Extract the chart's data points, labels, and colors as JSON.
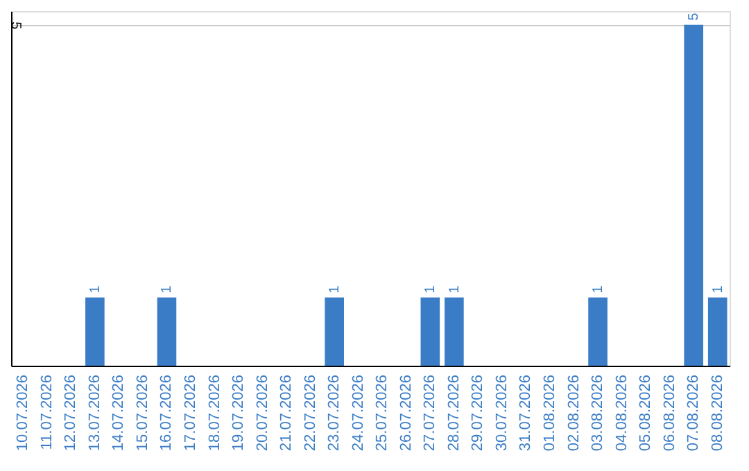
{
  "chart_data": {
    "type": "bar",
    "categories": [
      "10.07.2026",
      "11.07.2026",
      "12.07.2026",
      "13.07.2026",
      "14.07.2026",
      "15.07.2026",
      "16.07.2026",
      "17.07.2026",
      "18.07.2026",
      "19.07.2026",
      "20.07.2026",
      "21.07.2026",
      "22.07.2026",
      "23.07.2026",
      "24.07.2026",
      "25.07.2026",
      "26.07.2026",
      "27.07.2026",
      "28.07.2026",
      "29.07.2026",
      "30.07.2026",
      "31.07.2026",
      "01.08.2026",
      "02.08.2026",
      "03.08.2026",
      "04.08.2026",
      "05.08.2026",
      "06.08.2026",
      "07.08.2026",
      "08.08.2026"
    ],
    "values": [
      null,
      null,
      null,
      1,
      null,
      null,
      1,
      null,
      null,
      null,
      null,
      null,
      null,
      1,
      null,
      null,
      null,
      1,
      1,
      null,
      null,
      null,
      null,
      null,
      1,
      null,
      null,
      null,
      5,
      1
    ],
    "color": "#3a7dc6",
    "ylim": [
      0,
      5.2
    ],
    "yticks": [
      5
    ],
    "grid": "y",
    "data_labels": true
  }
}
